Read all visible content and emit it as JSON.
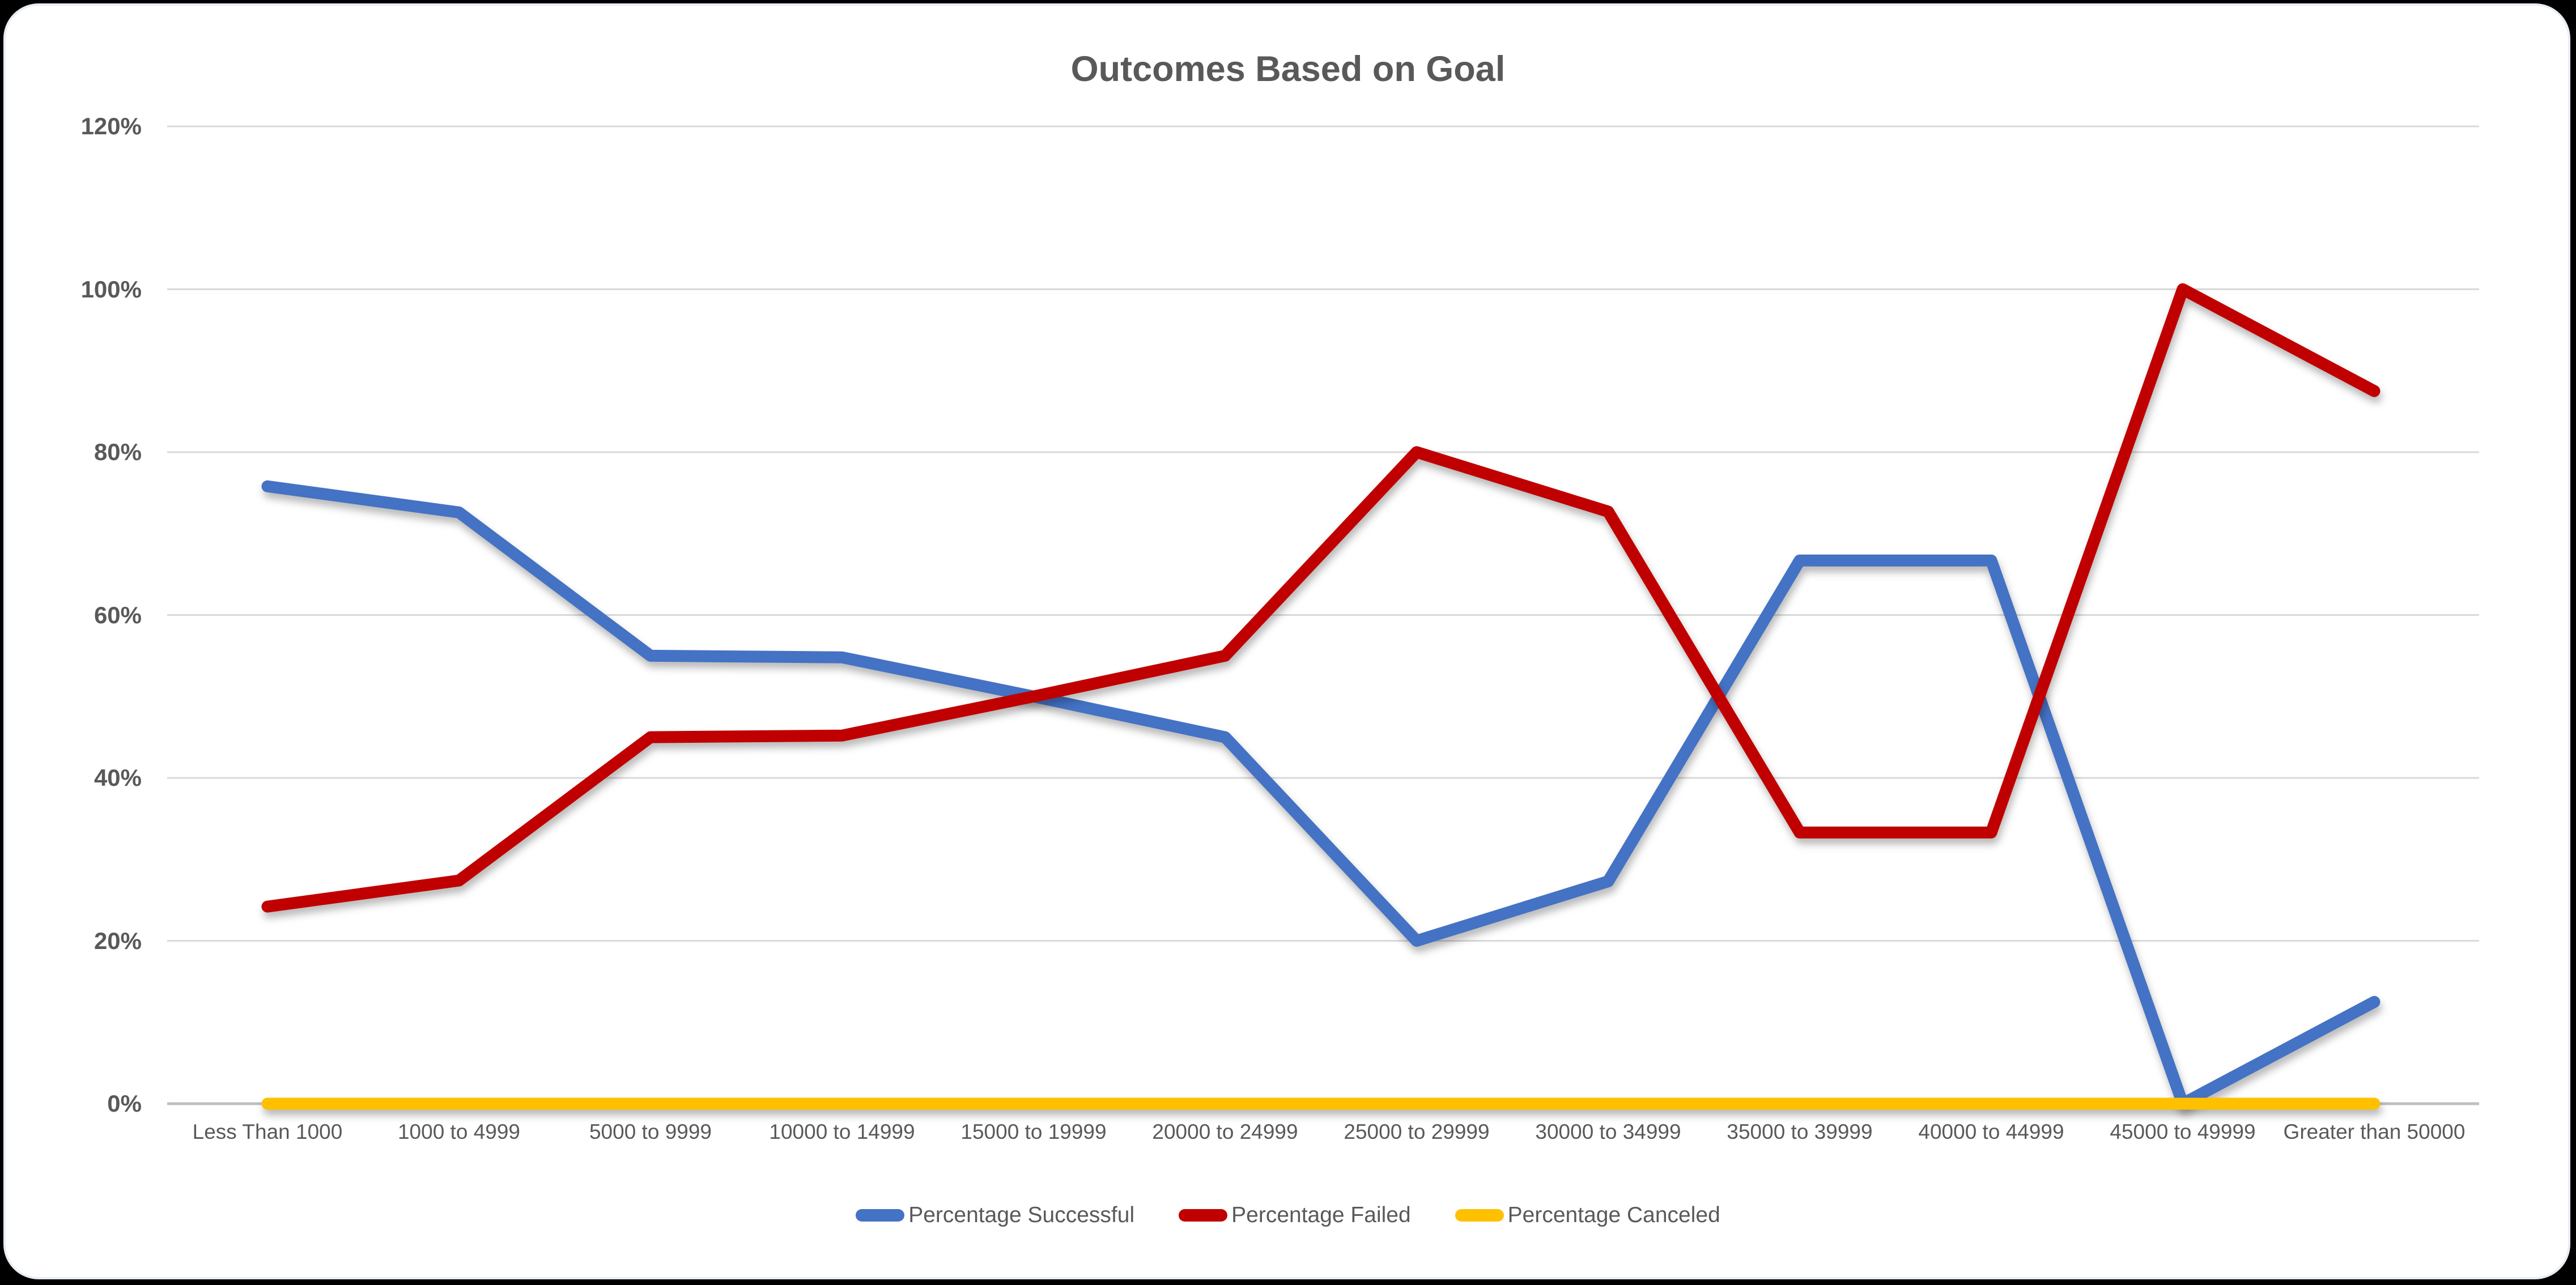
{
  "page": {
    "background_color": "#000000",
    "panel_color": "#FFFFFF",
    "text_color": "#595959",
    "gridline_color": "#D9D9D9",
    "axis_color": "#BFBFBF"
  },
  "chart_data": {
    "type": "line",
    "title": "Outcomes Based on Goal",
    "categories": [
      "Less Than 1000",
      "1000 to 4999",
      "5000 to 9999",
      "10000 to 14999",
      "15000 to 19999",
      "20000 to 24999",
      "25000 to 29999",
      "30000 to 34999",
      "35000 to 39999",
      "40000 to 44999",
      "45000 to 49999",
      "Greater than 50000"
    ],
    "series": [
      {
        "name": "Percentage Successful",
        "color": "#4472C4",
        "values": [
          75.8,
          72.6,
          55.0,
          54.8,
          50.0,
          45.0,
          20.0,
          27.3,
          66.7,
          66.7,
          0.0,
          12.5
        ]
      },
      {
        "name": "Percentage Failed",
        "color": "#C00000",
        "values": [
          24.2,
          27.4,
          45.0,
          45.2,
          50.0,
          55.0,
          80.0,
          72.7,
          33.3,
          33.3,
          100.0,
          87.5
        ]
      },
      {
        "name": "Percentage Canceled",
        "color": "#FFC000",
        "values": [
          0,
          0,
          0,
          0,
          0,
          0,
          0,
          0,
          0,
          0,
          0,
          0
        ]
      }
    ],
    "y_tick_labels": [
      "0%",
      "20%",
      "40%",
      "60%",
      "80%",
      "100%",
      "120%"
    ],
    "ylim": [
      0,
      120
    ],
    "grid": true,
    "legend_position": "bottom"
  }
}
